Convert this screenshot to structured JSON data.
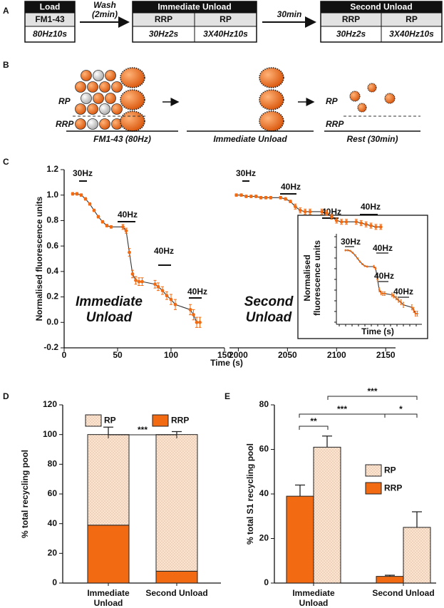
{
  "protocol": {
    "panel_label": "A",
    "steps": [
      {
        "title": "Load",
        "columns": [
          {
            "header": "FM1-43",
            "protocol": "80Hz10s"
          }
        ]
      },
      {
        "title": "Immediate Unload",
        "columns": [
          {
            "header": "RRP",
            "protocol": "30Hz2s"
          },
          {
            "header": "RP",
            "protocol": "3X40Hz10s"
          }
        ]
      },
      {
        "title": "Second Unload",
        "columns": [
          {
            "header": "RRP",
            "protocol": "30Hz2s"
          },
          {
            "header": "RP",
            "protocol": "3X40Hz10s"
          }
        ]
      }
    ],
    "transitions": [
      [
        "Wash",
        "(2min)"
      ],
      [
        "30min"
      ]
    ]
  },
  "schematic": {
    "panel_label": "B",
    "stages": [
      {
        "pool_labels": [
          "RP",
          "RRP"
        ],
        "caption": "FM1-43 (80Hz)"
      },
      {
        "caption": "Immediate Unload"
      },
      {
        "pool_labels": [
          "RP",
          "RRP"
        ],
        "caption": "Rest (30min)"
      }
    ]
  },
  "chart_data": [
    {
      "type": "line",
      "panel_label": "C",
      "y_label": "Normalised fluorescence units",
      "x_label": "Time (s)",
      "color": "#f26b12",
      "line_color": "#333333",
      "ylim": [
        -0.2,
        1.2
      ],
      "yticks": [
        -0.2,
        {
          "value": 0,
          "label": "0.0"
        },
        0.2,
        0.4,
        0.6,
        0.8,
        {
          "value": 1,
          "label": "1.0"
        },
        1.2
      ],
      "segments": [
        {
          "label": "Immediate Unload",
          "xlim": [
            0,
            150
          ],
          "xticks": [
            0,
            50,
            100,
            150
          ],
          "x": [
            8,
            12,
            16,
            20,
            24,
            28,
            32,
            36,
            40,
            44,
            55,
            58,
            61,
            64,
            67,
            70,
            73,
            85,
            88,
            92,
            96,
            100,
            104,
            118,
            121,
            124,
            127
          ],
          "values": [
            1.01,
            1.01,
            1.0,
            0.97,
            0.93,
            0.88,
            0.83,
            0.79,
            0.76,
            0.75,
            0.75,
            0.72,
            0.55,
            0.38,
            0.33,
            0.32,
            0.32,
            0.3,
            0.28,
            0.25,
            0.21,
            0.18,
            0.14,
            0.1,
            0.06,
            0.0,
            0.0
          ],
          "errors": [
            0.01,
            0.01,
            0.01,
            0.01,
            0.01,
            0.01,
            0.01,
            0.01,
            0.01,
            0.01,
            0.02,
            0.02,
            0.03,
            0.03,
            0.03,
            0.03,
            0.03,
            0.03,
            0.03,
            0.03,
            0.03,
            0.04,
            0.04,
            0.04,
            0.04,
            0.04,
            0.04
          ],
          "annotations": [
            "30Hz",
            "40Hz",
            "40Hz",
            "40Hz"
          ]
        },
        {
          "label": "Second Unload",
          "xlim": [
            1991,
            2160
          ],
          "xticks": [
            2000,
            2050,
            2100,
            2150
          ],
          "x": [
            1998,
            2003,
            2008,
            2013,
            2018,
            2023,
            2028,
            2033,
            2043,
            2048,
            2053,
            2058,
            2063,
            2068,
            2073,
            2085,
            2090,
            2095,
            2100,
            2105,
            2110,
            2120,
            2125,
            2130,
            2135,
            2140,
            2145
          ],
          "values": [
            1.0,
            1.0,
            0.99,
            0.99,
            0.99,
            0.98,
            0.98,
            0.98,
            0.98,
            0.97,
            0.95,
            0.91,
            0.88,
            0.87,
            0.87,
            0.87,
            0.86,
            0.83,
            0.8,
            0.79,
            0.79,
            0.79,
            0.78,
            0.77,
            0.76,
            0.75,
            0.75
          ],
          "errors": [
            0.01,
            0.01,
            0.01,
            0.01,
            0.01,
            0.01,
            0.01,
            0.01,
            0.01,
            0.01,
            0.01,
            0.02,
            0.02,
            0.02,
            0.02,
            0.02,
            0.02,
            0.02,
            0.02,
            0.02,
            0.02,
            0.02,
            0.02,
            0.02,
            0.02,
            0.02,
            0.02
          ],
          "annotations": [
            "30Hz",
            "40Hz",
            "40Hz",
            "40Hz"
          ]
        }
      ],
      "inset": {
        "y_label": [
          "Normalised",
          "fluorescence units"
        ],
        "x_label": "Time (s)",
        "annotations": [
          "30Hz",
          "40Hz",
          "40Hz",
          "40Hz"
        ]
      }
    },
    {
      "type": "stacked_bar",
      "panel_label": "D",
      "y_label": "% total recycling pool",
      "categories": [
        "Immediate Unload",
        "Second Unload"
      ],
      "ylim": [
        0,
        120
      ],
      "yticks": [
        0,
        20,
        40,
        60,
        80,
        100,
        120
      ],
      "series": [
        {
          "name": "RP",
          "color": "#fbe4d0",
          "pattern": "dots",
          "values": [
            61,
            92
          ],
          "errors": [
            5,
            2
          ]
        },
        {
          "name": "RRP",
          "color": "#f26b12",
          "values": [
            39,
            8
          ],
          "errors": [
            5,
            2
          ]
        }
      ],
      "significance": [
        "***"
      ]
    },
    {
      "type": "bar",
      "panel_label": "E",
      "y_label": "% total S1 recycling pool",
      "categories": [
        "Immediate Unload",
        "Second Unload"
      ],
      "ylim": [
        0,
        80
      ],
      "yticks": [
        0,
        20,
        40,
        60,
        80
      ],
      "series": [
        {
          "name": "RP",
          "color": "#fbe4d0",
          "pattern": "dots",
          "values": [
            61,
            25
          ],
          "errors": [
            5,
            7
          ]
        },
        {
          "name": "RRP",
          "color": "#f26b12",
          "values": [
            39,
            3
          ],
          "errors": [
            5,
            0.5
          ]
        }
      ],
      "significance": [
        "**",
        "***",
        "*",
        "***"
      ]
    }
  ]
}
